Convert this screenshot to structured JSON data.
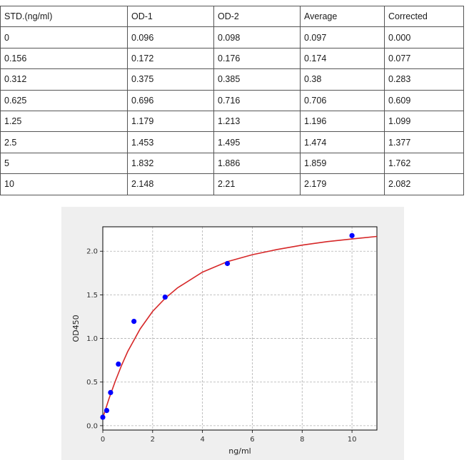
{
  "table": {
    "headers": [
      "STD.(ng/ml)",
      "OD-1",
      "OD-2",
      "Average",
      "Corrected"
    ],
    "rows": [
      [
        "0",
        "0.096",
        "0.098",
        "0.097",
        "0.000"
      ],
      [
        "0.156",
        "0.172",
        "0.176",
        "0.174",
        "0.077"
      ],
      [
        "0.312",
        "0.375",
        "0.385",
        "0.38",
        "0.283"
      ],
      [
        "0.625",
        "0.696",
        "0.716",
        "0.706",
        "0.609"
      ],
      [
        "1.25",
        "1.179",
        "1.213",
        "1.196",
        "1.099"
      ],
      [
        "2.5",
        "1.453",
        "1.495",
        "1.474",
        "1.377"
      ],
      [
        "5",
        "1.832",
        "1.886",
        "1.859",
        "1.762"
      ],
      [
        "10",
        "2.148",
        "2.21",
        "2.179",
        "2.082"
      ]
    ]
  },
  "chart_data": {
    "type": "scatter",
    "xlabel": "ng/ml",
    "ylabel": "OD450",
    "xlim": [
      0,
      11
    ],
    "ylim": [
      -0.05,
      2.28
    ],
    "xticks": [
      0,
      2,
      4,
      6,
      8,
      10
    ],
    "yticks": [
      0.0,
      0.5,
      1.0,
      1.5,
      2.0
    ],
    "xtick_labels": [
      "0",
      "2",
      "4",
      "6",
      "8",
      "10"
    ],
    "ytick_labels": [
      "0.0",
      "0.5",
      "1.0",
      "1.5",
      "2.0"
    ],
    "grid": true,
    "series": [
      {
        "kind": "points",
        "color": "#0000ff",
        "x": [
          0,
          0.156,
          0.312,
          0.625,
          1.25,
          2.5,
          5,
          10
        ],
        "y": [
          0.097,
          0.174,
          0.38,
          0.706,
          1.196,
          1.474,
          1.859,
          2.179
        ]
      },
      {
        "kind": "fit-curve",
        "color": "#d62728",
        "x": [
          0,
          0.25,
          0.5,
          0.75,
          1,
          1.5,
          2,
          2.5,
          3,
          4,
          5,
          6,
          7,
          8,
          9,
          10,
          11
        ],
        "y": [
          0.09,
          0.31,
          0.51,
          0.69,
          0.85,
          1.11,
          1.31,
          1.46,
          1.58,
          1.76,
          1.88,
          1.96,
          2.02,
          2.07,
          2.11,
          2.14,
          2.17
        ]
      }
    ]
  }
}
